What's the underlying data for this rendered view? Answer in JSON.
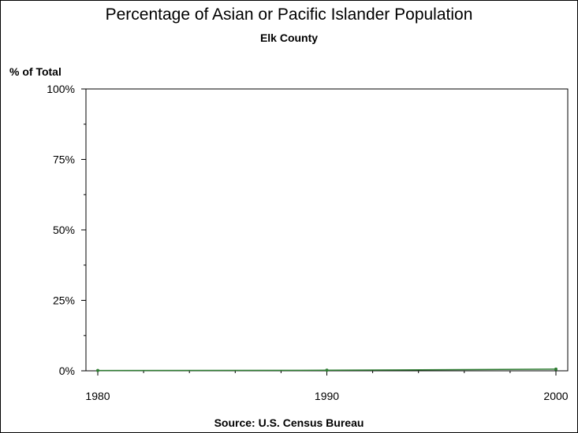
{
  "chart_data": {
    "type": "line",
    "title": "Percentage of Asian or Pacific Islander Population",
    "subtitle": "Elk County",
    "ylabel": "% of Total",
    "source": "Source: U.S. Census Bureau",
    "x": [
      1980,
      1990,
      2000
    ],
    "y": [
      0.1,
      0.2,
      0.6
    ],
    "xlim": [
      1980,
      2000
    ],
    "ylim": [
      0,
      100
    ],
    "x_ticks": [
      1980,
      1990,
      2000
    ],
    "x_tick_labels": [
      "1980",
      "1990",
      "2000"
    ],
    "y_ticks": [
      0,
      25,
      50,
      75,
      100
    ],
    "y_tick_labels": [
      "0%",
      "25%",
      "50%",
      "75%",
      "100%"
    ],
    "series_color": "#2e7d32",
    "grid": false
  }
}
